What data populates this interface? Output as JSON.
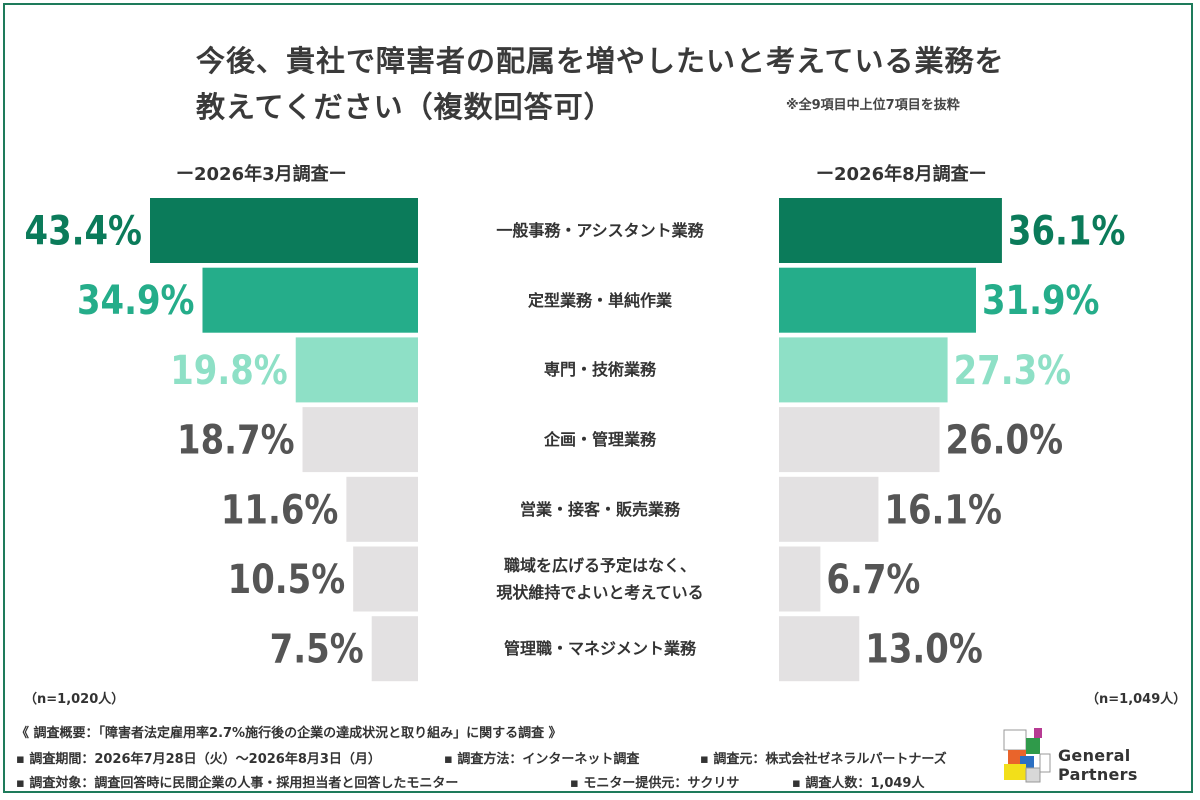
{
  "title": {
    "line1": "今後、貴社で障害者の配属を増やしたいと考えている業務を",
    "line2": "教えてください（複数回答可）"
  },
  "note": "※全9項目中上位7項目を抜粋",
  "colors": {
    "top1": "#0b7b5a",
    "top2": "#25ad8a",
    "top3": "#8ee0c6",
    "other": "#e3e1e2",
    "grayText": "#555555",
    "frame": "#1e7b5b"
  },
  "chart_data": {
    "type": "bar",
    "categories": [
      "一般事務・アシスタント業務",
      "定型業務・単純作業",
      "専門・技術業務",
      "企画・管理業務",
      "営業・接客・販売業務",
      "職域を広げる予定はなく、現状維持でよいと考えている",
      "管理職・マネジメント業務"
    ],
    "category_lines": [
      [
        "一般事務・アシスタント業務"
      ],
      [
        "定型業務・単純作業"
      ],
      [
        "専門・技術業務"
      ],
      [
        "企画・管理業務"
      ],
      [
        "営業・接客・販売業務"
      ],
      [
        "職域を広げる予定はなく、",
        "現状維持でよいと考えている"
      ],
      [
        "管理職・マネジメント業務"
      ]
    ],
    "series": [
      {
        "name": "ー2026年3月調査ー",
        "values": [
          43.4,
          34.9,
          19.8,
          18.7,
          11.6,
          10.5,
          7.5
        ],
        "labels": [
          "43.4%",
          "34.9%",
          "19.8%",
          "18.7%",
          "11.6%",
          "10.5%",
          "7.5%"
        ],
        "n": "（n=1,020人）"
      },
      {
        "name": "ー2026年8月調査ー",
        "values": [
          36.1,
          31.9,
          27.3,
          26.0,
          16.1,
          6.7,
          13.0
        ],
        "labels": [
          "36.1%",
          "31.9%",
          "27.3%",
          "26.0%",
          "16.1%",
          "6.7%",
          "13.0%"
        ],
        "n": "（n=1,049人）"
      }
    ],
    "unit": "%"
  },
  "footer": {
    "summary": "《 調査概要：「障害者法定雇用率2.7%施行後の企業の達成状況と取り組み」に関する調査 》",
    "period": "▪ 調査期間：2026年7月28日（火）～2026年8月3日（月）",
    "method": "▪ 調査方法：インターネット調査",
    "source": "▪ 調査元：株式会社ゼネラルパートナーズ",
    "target": "▪ 調査対象：調査回答時に民間企業の人事・採用担当者と回答したモニター",
    "provider": "▪ モニター提供元：サクリサ",
    "count": "▪ 調査人数：1,049人"
  },
  "logo": {
    "text": "General Partners",
    "icon": "colored-cubes-logo"
  }
}
